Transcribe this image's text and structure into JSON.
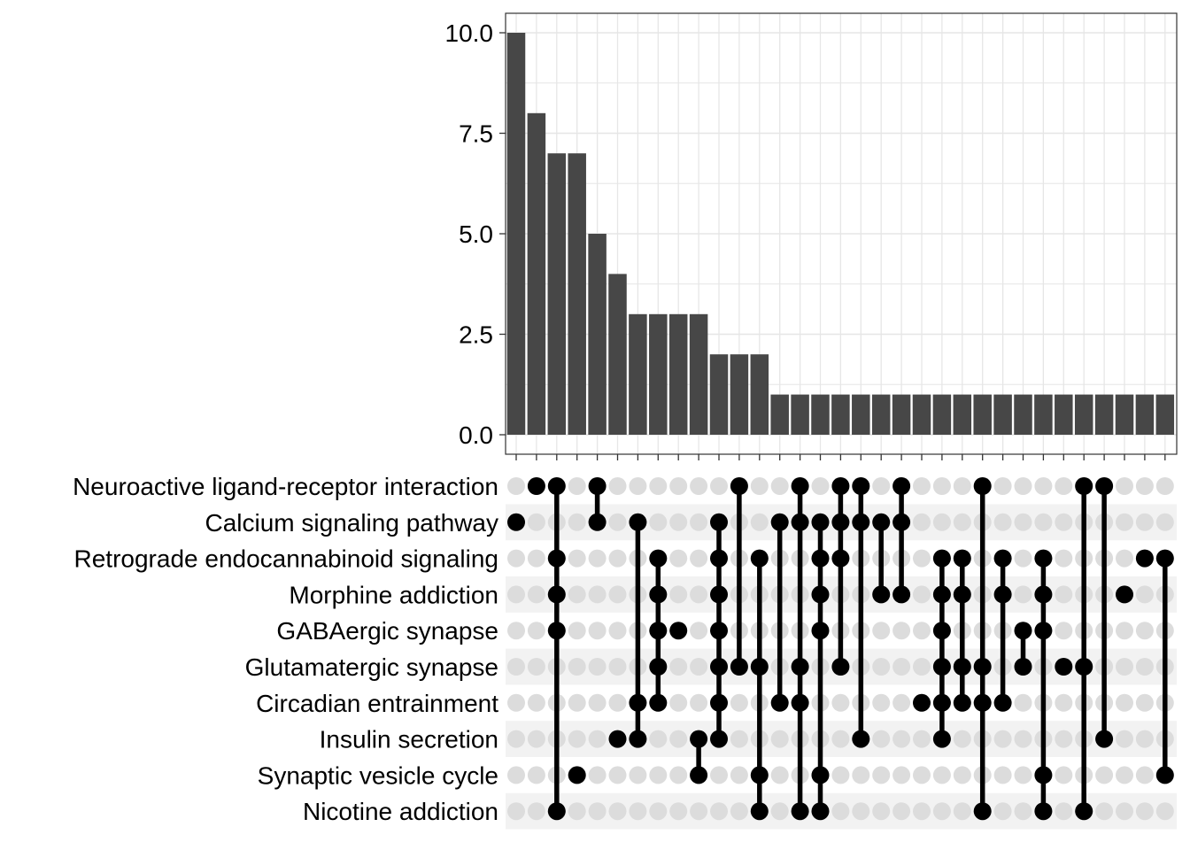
{
  "chart_data": {
    "type": "bar",
    "subtype": "upset",
    "title": "",
    "xlabel": "",
    "ylabel": "",
    "ylim": [
      0,
      10.5
    ],
    "yticks": [
      "0.0",
      "2.5",
      "5.0",
      "7.5",
      "10.0"
    ],
    "ytick_values": [
      0,
      2.5,
      5,
      7.5,
      10
    ],
    "grid": true,
    "sets": [
      "Neuroactive ligand-receptor interaction",
      "Calcium signaling pathway",
      "Retrograde endocannabinoid signaling",
      "Morphine addiction",
      "GABAergic synapse",
      "Glutamatergic synapse",
      "Circadian entrainment",
      "Insulin secretion",
      "Synaptic vesicle cycle",
      "Nicotine addiction"
    ],
    "intersections": [
      {
        "sets": [
          1
        ],
        "value": 10
      },
      {
        "sets": [
          0
        ],
        "value": 8
      },
      {
        "sets": [
          0,
          2,
          3,
          4,
          9
        ],
        "value": 7
      },
      {
        "sets": [
          8
        ],
        "value": 7
      },
      {
        "sets": [
          0,
          1
        ],
        "value": 5
      },
      {
        "sets": [
          7
        ],
        "value": 4
      },
      {
        "sets": [
          1,
          6,
          7
        ],
        "value": 3
      },
      {
        "sets": [
          2,
          3,
          4,
          5,
          6
        ],
        "value": 3
      },
      {
        "sets": [
          4
        ],
        "value": 3
      },
      {
        "sets": [
          7,
          8
        ],
        "value": 3
      },
      {
        "sets": [
          1,
          2,
          3,
          4,
          5,
          6,
          7
        ],
        "value": 2
      },
      {
        "sets": [
          0,
          5
        ],
        "value": 2
      },
      {
        "sets": [
          2,
          5,
          8,
          9
        ],
        "value": 2
      },
      {
        "sets": [
          1,
          6
        ],
        "value": 1
      },
      {
        "sets": [
          0,
          1,
          5,
          6,
          9
        ],
        "value": 1
      },
      {
        "sets": [
          1,
          2,
          3,
          4,
          8,
          9
        ],
        "value": 1
      },
      {
        "sets": [
          0,
          1,
          2,
          5
        ],
        "value": 1
      },
      {
        "sets": [
          0,
          1,
          7
        ],
        "value": 1
      },
      {
        "sets": [
          1,
          3
        ],
        "value": 1
      },
      {
        "sets": [
          0,
          1,
          3
        ],
        "value": 1
      },
      {
        "sets": [
          6
        ],
        "value": 1
      },
      {
        "sets": [
          2,
          3,
          4,
          5,
          6,
          7
        ],
        "value": 1
      },
      {
        "sets": [
          2,
          3,
          5,
          6
        ],
        "value": 1
      },
      {
        "sets": [
          0,
          5,
          6,
          9
        ],
        "value": 1
      },
      {
        "sets": [
          2,
          3,
          6
        ],
        "value": 1
      },
      {
        "sets": [
          4,
          5
        ],
        "value": 1
      },
      {
        "sets": [
          2,
          3,
          4,
          8,
          9
        ],
        "value": 1
      },
      {
        "sets": [
          5
        ],
        "value": 1
      },
      {
        "sets": [
          0,
          5,
          9
        ],
        "value": 1
      },
      {
        "sets": [
          0,
          7
        ],
        "value": 1
      },
      {
        "sets": [
          3
        ],
        "value": 1
      },
      {
        "sets": [
          2
        ],
        "value": 1
      },
      {
        "sets": [
          2,
          8
        ],
        "value": 1
      }
    ],
    "colors": {
      "bar": "#474747",
      "dot_active": "#000000",
      "dot_inactive": "#dcdcdc",
      "row_stripe": "#f2f2f2",
      "grid": "#e6e6e6",
      "panel_border": "#333333"
    }
  }
}
